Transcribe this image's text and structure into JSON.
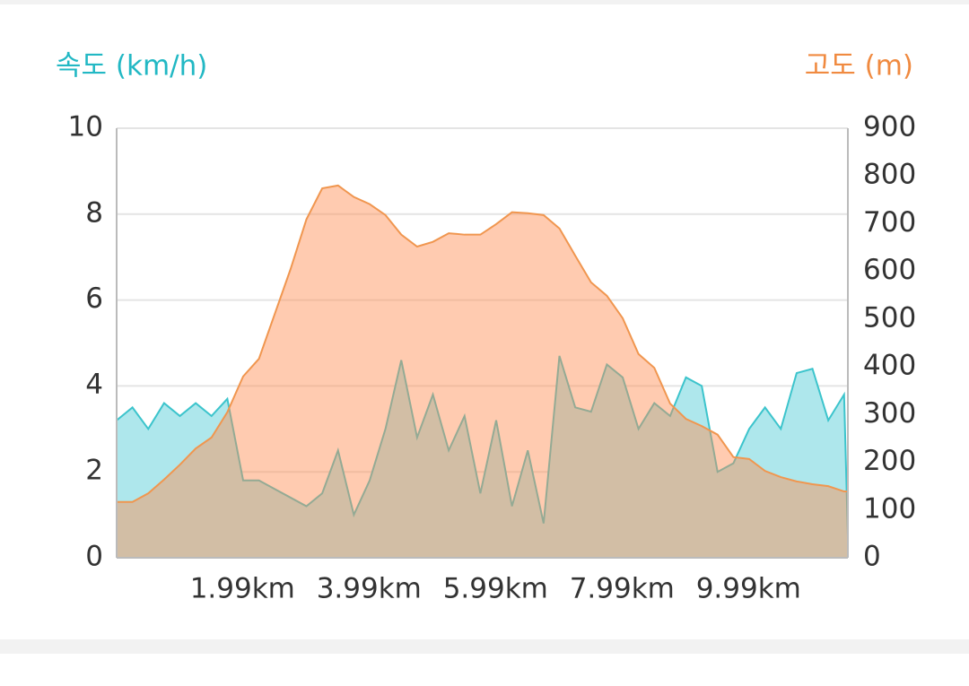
{
  "chart_data": {
    "type": "area",
    "ylabel": "속도 (km/h)",
    "y2label": "고도 (m)",
    "x": [
      0,
      0.25,
      0.5,
      0.75,
      1.0,
      1.25,
      1.5,
      1.75,
      2.0,
      2.25,
      2.5,
      2.75,
      3.0,
      3.25,
      3.5,
      3.75,
      4.0,
      4.25,
      4.5,
      4.75,
      5.0,
      5.25,
      5.5,
      5.75,
      6.0,
      6.25,
      6.5,
      6.75,
      7.0,
      7.25,
      7.5,
      7.75,
      8.0,
      8.25,
      8.5,
      8.75,
      9.0,
      9.25,
      9.5,
      9.75,
      10.0,
      10.25,
      10.5,
      10.75,
      11.0,
      11.25,
      11.5,
      11.56
    ],
    "series": [
      {
        "name": "속도",
        "color": "#3cc4cc",
        "fill": "#aee7ec",
        "values": [
          3.2,
          3.5,
          3.0,
          3.6,
          3.3,
          3.6,
          3.3,
          3.7,
          1.8,
          1.8,
          1.6,
          1.4,
          1.2,
          1.5,
          2.5,
          1.0,
          1.8,
          3.0,
          4.6,
          2.8,
          3.8,
          2.5,
          3.3,
          1.5,
          3.2,
          1.2,
          2.5,
          0.8,
          4.7,
          3.5,
          3.4,
          4.5,
          4.2,
          3.0,
          3.6,
          3.3,
          4.2,
          4.0,
          2.0,
          2.2,
          3.0,
          3.5,
          3.0,
          4.3,
          4.4,
          3.2,
          3.8,
          0.5
        ]
      },
      {
        "name": "고도",
        "color": "#f0964f",
        "fill": "rgba(255,140,80,0.45)",
        "axis": "y2",
        "values": [
          117,
          117,
          135,
          164,
          195,
          229,
          252,
          305,
          380,
          417,
          511,
          605,
          709,
          774,
          780,
          756,
          741,
          718,
          677,
          652,
          662,
          680,
          677,
          677,
          699,
          724,
          722,
          718,
          690,
          633,
          577,
          549,
          502,
          427,
          398,
          323,
          291,
          276,
          258,
          211,
          207,
          182,
          169,
          160,
          154,
          150,
          139,
          139
        ]
      }
    ],
    "xlim": [
      0,
      11.56
    ],
    "xticks": [
      {
        "value": 1.99,
        "label": "1.99km"
      },
      {
        "value": 3.99,
        "label": "3.99km"
      },
      {
        "value": 5.99,
        "label": "5.99km"
      },
      {
        "value": 7.99,
        "label": "7.99km"
      },
      {
        "value": 9.99,
        "label": "9.99km"
      }
    ],
    "ylim": [
      0,
      10
    ],
    "yticks": [
      0,
      2,
      4,
      6,
      8,
      10
    ],
    "y2lim": [
      0,
      900
    ],
    "y2ticks": [
      0,
      100,
      200,
      300,
      400,
      500,
      600,
      700,
      800,
      900
    ],
    "grid": true
  }
}
